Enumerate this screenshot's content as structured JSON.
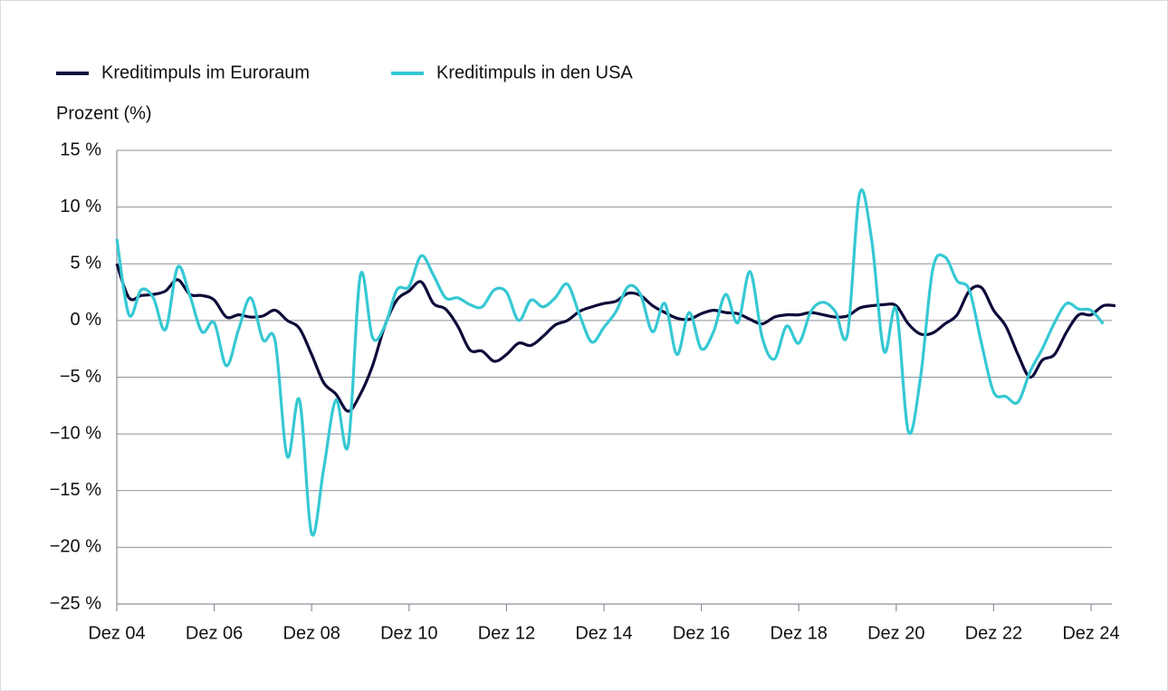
{
  "chart_data": {
    "type": "line",
    "y_label": "Prozent (%)",
    "categories": [
      "Dez 04",
      null,
      null,
      null,
      null,
      null,
      null,
      null,
      "Dez 06",
      null,
      null,
      null,
      null,
      null,
      null,
      null,
      "Dez 08",
      null,
      null,
      null,
      null,
      null,
      null,
      null,
      "Dez 10",
      null,
      null,
      null,
      null,
      null,
      null,
      null,
      "Dez 12",
      null,
      null,
      null,
      null,
      null,
      null,
      null,
      "Dez 14",
      null,
      null,
      null,
      null,
      null,
      null,
      null,
      "Dez 16",
      null,
      null,
      null,
      null,
      null,
      null,
      null,
      "Dez 18",
      null,
      null,
      null,
      null,
      null,
      null,
      null,
      "Dez 20",
      null,
      null,
      null,
      null,
      null,
      null,
      null,
      "Dez 22",
      null,
      null,
      null,
      null,
      null,
      null,
      null,
      "Dez 24",
      null,
      null
    ],
    "series": [
      {
        "name": "Kreditimpuls im Euroraum",
        "color": "#0d0b3a",
        "values": [
          5,
          2,
          2.2,
          2.3,
          2.6,
          3.6,
          2.3,
          2.2,
          1.8,
          0.3,
          0.5,
          0.3,
          0.4,
          0.9,
          0,
          -0.7,
          -3,
          -5.5,
          -6.5,
          -8,
          -6.5,
          -4,
          -0.5,
          1.8,
          2.6,
          3.4,
          1.5,
          1,
          -0.5,
          -2.6,
          -2.7,
          -3.6,
          -3,
          -2,
          -2.2,
          -1.4,
          -0.4,
          0,
          0.8,
          1.2,
          1.5,
          1.7,
          2.4,
          2.2,
          1.3,
          0.7,
          0.2,
          0.1,
          0.6,
          0.9,
          0.7,
          0.6,
          0.1,
          -0.3,
          0.3,
          0.5,
          0.5,
          0.7,
          0.5,
          0.3,
          0.4,
          1.1,
          1.3,
          1.4,
          1.3,
          -0.3,
          -1.2,
          -1.1,
          -0.3,
          0.5,
          2.6,
          2.9,
          0.9,
          -0.5,
          -3,
          -5,
          -3.5,
          -3,
          -1,
          0.5,
          0.5,
          1.3,
          1.3
        ]
      },
      {
        "name": "Kreditimpuls in den USA",
        "color": "#35c8d3",
        "values": [
          7.2,
          0.5,
          2.7,
          2,
          -0.8,
          4.7,
          2.2,
          -1,
          -0.2,
          -4,
          -0.8,
          2,
          -1.7,
          -1.8,
          -12,
          -7,
          -18.8,
          -13,
          -7,
          -11,
          4,
          -1.5,
          -0.5,
          2.7,
          3,
          5.7,
          4,
          2,
          2,
          1.4,
          1.2,
          2.7,
          2.5,
          0,
          1.8,
          1.2,
          2,
          3.2,
          0.5,
          -1.9,
          -0.6,
          0.8,
          3,
          2.3,
          -1,
          1.5,
          -3,
          0.7,
          -2.5,
          -1,
          2.3,
          -0.2,
          4.3,
          -1.5,
          -3.4,
          -0.5,
          -2,
          0.8,
          1.6,
          0.8,
          -1.2,
          11.2,
          7,
          -2.7,
          1,
          -9.8,
          -5,
          4.5,
          5.6,
          3.5,
          2.7,
          -2,
          -6.3,
          -6.7,
          -7.2,
          -4.5,
          -2.5,
          -0.2,
          1.5,
          1,
          0.9,
          -0.3,
          null
        ]
      }
    ],
    "ylim": [
      -25,
      15
    ],
    "yticks": [
      {
        "value": -25,
        "label": "−25 %"
      },
      {
        "value": -20,
        "label": "−20 %"
      },
      {
        "value": -15,
        "label": "−15 %"
      },
      {
        "value": -10,
        "label": "−10 %"
      },
      {
        "value": -5,
        "label": "−5 %"
      },
      {
        "value": 0,
        "label": "0 %"
      },
      {
        "value": 5,
        "label": "5 %"
      },
      {
        "value": 10,
        "label": "10 %"
      },
      {
        "value": 15,
        "label": "15 %"
      }
    ],
    "grid": true,
    "legend": "top-left"
  }
}
